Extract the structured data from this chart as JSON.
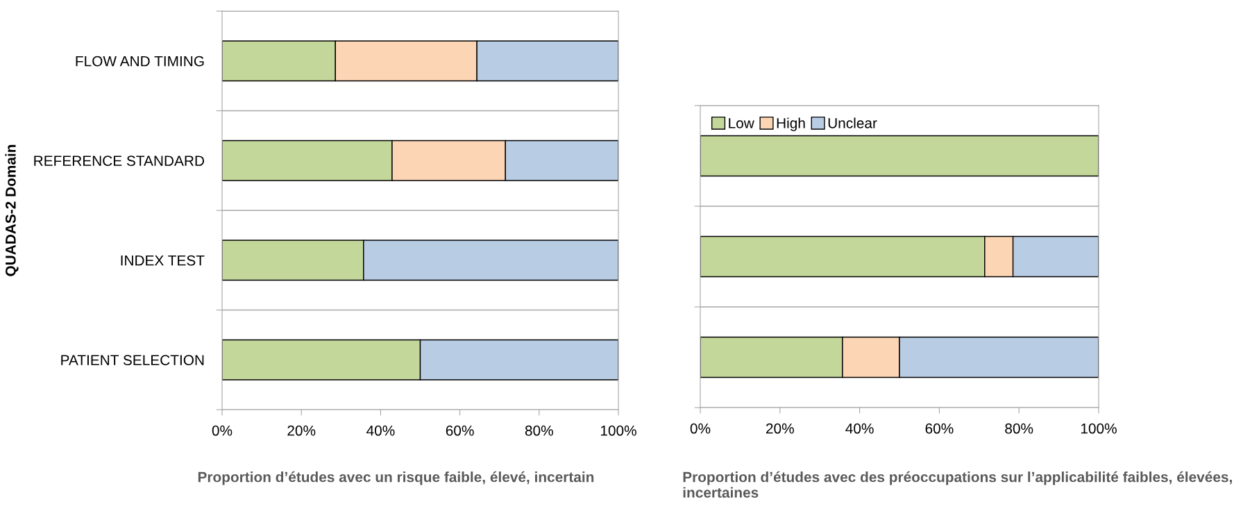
{
  "chart_data": [
    {
      "type": "bar",
      "orientation": "horizontal",
      "stacked": true,
      "ylabel": "QUADAS-2 Domain",
      "xlabel": "Proportion d’études avec un risque faible, élevé, incertain",
      "categories": [
        "FLOW AND TIMING",
        "REFERENCE STANDARD",
        "INDEX TEST",
        "PATIENT SELECTION"
      ],
      "series": [
        {
          "color": "#c4d79b",
          "values": [
            28.6,
            42.9,
            35.7,
            50
          ]
        },
        {
          "color": "#fcd5b4",
          "values": [
            35.7,
            28.6,
            0,
            0
          ]
        },
        {
          "color": "#b8cce4",
          "values": [
            35.7,
            28.5,
            64.3,
            50
          ]
        }
      ],
      "xlim": [
        0,
        100
      ],
      "xticks": [
        {
          "value": 0,
          "label": "0%"
        },
        {
          "value": 20,
          "label": "20%"
        },
        {
          "value": 40,
          "label": "40%"
        },
        {
          "value": 60,
          "label": "60%"
        },
        {
          "value": 80,
          "label": "80%"
        },
        {
          "value": 100,
          "label": "100%"
        }
      ],
      "grid": "y",
      "legend": false
    },
    {
      "type": "bar",
      "orientation": "horizontal",
      "stacked": true,
      "xlabel": "Proportion d’études avec des préoccupations sur l’applicabilité faibles, élevées, incertaines",
      "categories": [
        null,
        null,
        null
      ],
      "series": [
        {
          "name": "Low",
          "color": "#c4d79b",
          "values": [
            100,
            71.4,
            35.7
          ]
        },
        {
          "name": "High",
          "color": "#fcd5b4",
          "values": [
            0,
            7.1,
            14.3
          ]
        },
        {
          "name": "Unclear",
          "color": "#b8cce4",
          "values": [
            0,
            21.5,
            50
          ]
        }
      ],
      "xlim": [
        0,
        100
      ],
      "xticks": [
        {
          "value": 0,
          "label": "0%"
        },
        {
          "value": 20,
          "label": "20%"
        },
        {
          "value": 40,
          "label": "40%"
        },
        {
          "value": 60,
          "label": "60%"
        },
        {
          "value": 80,
          "label": "80%"
        },
        {
          "value": 100,
          "label": "100%"
        }
      ],
      "grid": "y",
      "legend": "top left"
    }
  ]
}
